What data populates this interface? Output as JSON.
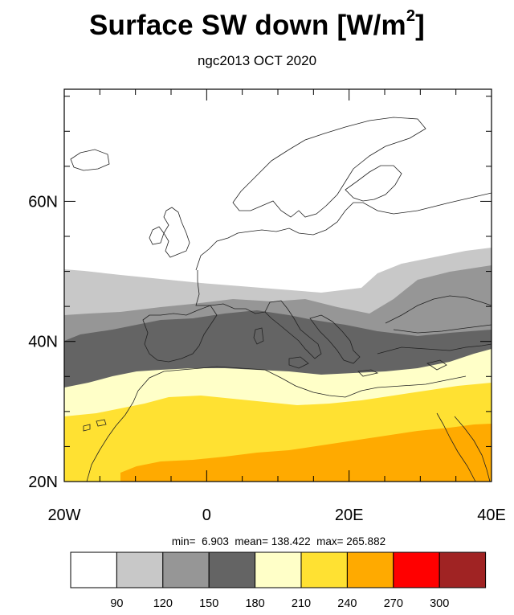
{
  "chart_data": {
    "type": "heatmap",
    "title": "Surface SW down [W/m",
    "title_sup": "2",
    "title_end": "]",
    "subtitle": "ngc2013 OCT 2020",
    "xlim": [
      -20,
      40
    ],
    "ylim": [
      20,
      76
    ],
    "x_ticks": [
      {
        "value": -20,
        "label": "20W"
      },
      {
        "value": 0,
        "label": "0"
      },
      {
        "value": 20,
        "label": "20E"
      },
      {
        "value": 40,
        "label": "40E"
      }
    ],
    "y_ticks": [
      {
        "value": 20,
        "label": "20N"
      },
      {
        "value": 40,
        "label": "40N"
      },
      {
        "value": 60,
        "label": "60N"
      }
    ],
    "stats": {
      "min_label": "min=",
      "min": "6.903",
      "mean_label": "mean=",
      "mean": "138.422",
      "max_label": "max=",
      "max": "265.882"
    },
    "colorbar": {
      "levels": [
        "90",
        "120",
        "150",
        "180",
        "210",
        "240",
        "270",
        "300"
      ],
      "colors": [
        "#ffffff",
        "#c8c8c8",
        "#969696",
        "#646464",
        "#ffffc8",
        "#ffe132",
        "#ffaa00",
        "#ff0000",
        "#a02323"
      ]
    },
    "field_bands": [
      {
        "color": "#ffffff",
        "range": "< 90"
      },
      {
        "color": "#c8c8c8",
        "range": "90-120"
      },
      {
        "color": "#969696",
        "range": "120-150"
      },
      {
        "color": "#646464",
        "range": "150-180"
      },
      {
        "color": "#ffffc8",
        "range": "180-210"
      },
      {
        "color": "#ffe132",
        "range": "210-240"
      },
      {
        "color": "#ffaa00",
        "range": "240-270"
      }
    ]
  }
}
